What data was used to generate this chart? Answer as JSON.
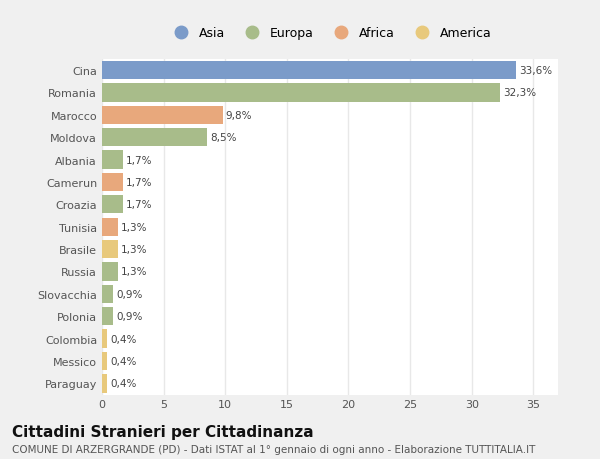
{
  "categories": [
    "Cina",
    "Romania",
    "Marocco",
    "Moldova",
    "Albania",
    "Camerun",
    "Croazia",
    "Tunisia",
    "Brasile",
    "Russia",
    "Slovacchia",
    "Polonia",
    "Colombia",
    "Messico",
    "Paraguay"
  ],
  "values": [
    33.6,
    32.3,
    9.8,
    8.5,
    1.7,
    1.7,
    1.7,
    1.3,
    1.3,
    1.3,
    0.9,
    0.9,
    0.4,
    0.4,
    0.4
  ],
  "labels": [
    "33,6%",
    "32,3%",
    "9,8%",
    "8,5%",
    "1,7%",
    "1,7%",
    "1,7%",
    "1,3%",
    "1,3%",
    "1,3%",
    "0,9%",
    "0,9%",
    "0,4%",
    "0,4%",
    "0,4%"
  ],
  "colors": [
    "#7b9bc9",
    "#a8bc8a",
    "#e8a87c",
    "#a8bc8a",
    "#a8bc8a",
    "#e8a87c",
    "#a8bc8a",
    "#e8a87c",
    "#e8c97c",
    "#a8bc8a",
    "#a8bc8a",
    "#a8bc8a",
    "#e8c97c",
    "#e8c97c",
    "#e8c97c"
  ],
  "legend_labels": [
    "Asia",
    "Europa",
    "Africa",
    "America"
  ],
  "legend_colors": [
    "#7b9bc9",
    "#a8bc8a",
    "#e8a87c",
    "#e8c97c"
  ],
  "title": "Cittadini Stranieri per Cittadinanza",
  "subtitle": "COMUNE DI ARZERGRANDE (PD) - Dati ISTAT al 1° gennaio di ogni anno - Elaborazione TUTTITALIA.IT",
  "xlim": [
    0,
    37
  ],
  "xticks": [
    0,
    5,
    10,
    15,
    20,
    25,
    30,
    35
  ],
  "background_color": "#f0f0f0",
  "bar_background": "#ffffff",
  "grid_color": "#e8e8e8",
  "title_fontsize": 11,
  "subtitle_fontsize": 7.5,
  "bar_height": 0.82
}
